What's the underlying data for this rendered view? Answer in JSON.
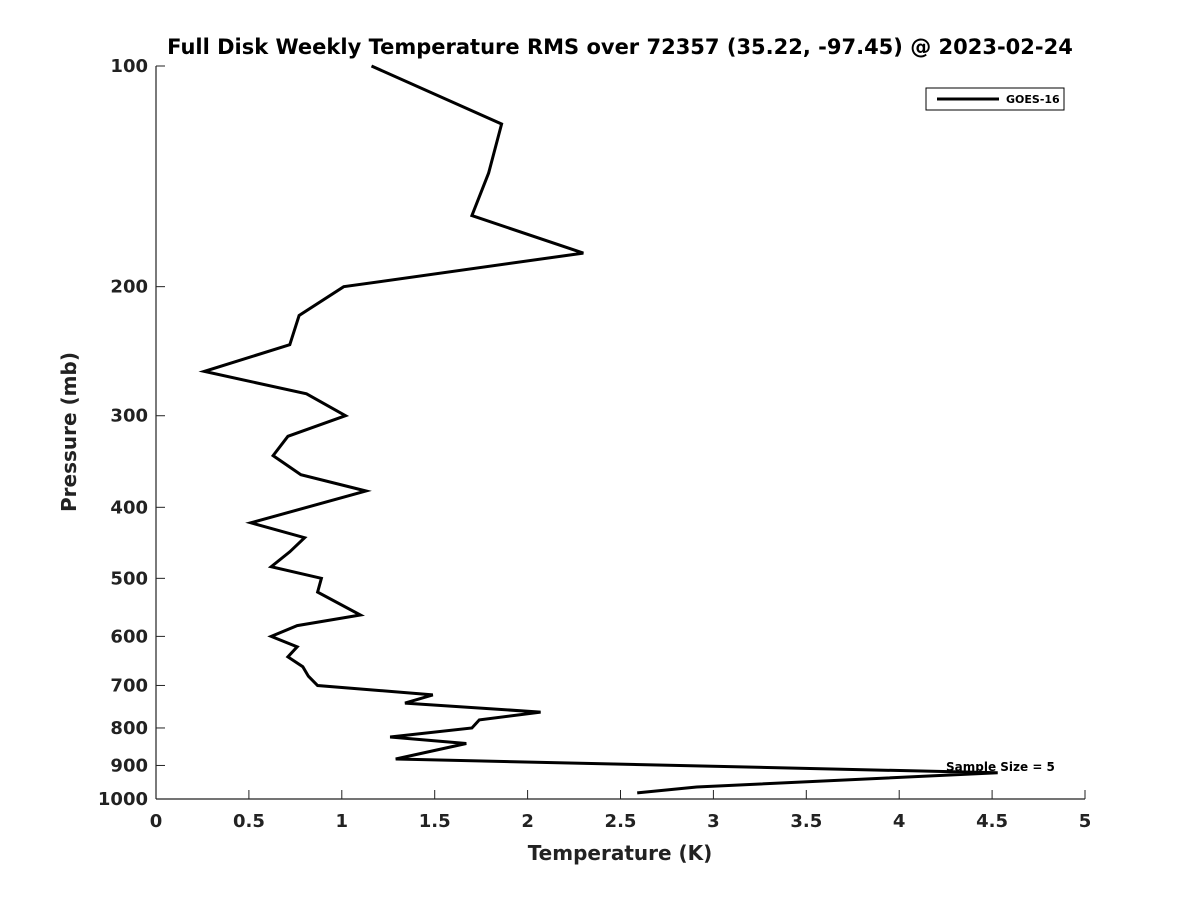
{
  "chart_data": {
    "type": "line",
    "title": "Full Disk Weekly Temperature RMS over 72357 (35.22, -97.45) @ 2023-02-24",
    "xlabel": "Temperature (K)",
    "ylabel": "Pressure (mb)",
    "xlim": [
      0,
      5
    ],
    "ylim": [
      100,
      1000
    ],
    "yscale": "log",
    "yreversed": true,
    "grid": false,
    "x_ticks": [
      0,
      0.5,
      1,
      1.5,
      2,
      2.5,
      3,
      3.5,
      4,
      4.5,
      5
    ],
    "x_tick_labels": [
      "0",
      "0.5",
      "1",
      "1.5",
      "2",
      "2.5",
      "3",
      "3.5",
      "4",
      "4.5",
      "5"
    ],
    "y_ticks": [
      100,
      200,
      300,
      400,
      500,
      600,
      700,
      800,
      900,
      1000
    ],
    "y_tick_labels": [
      "100",
      "200",
      "300",
      "400",
      "500",
      "600",
      "700",
      "800",
      "900",
      "1000"
    ],
    "legend": {
      "position": "top-right",
      "entries": [
        "GOES-16"
      ]
    },
    "annotation": "Sample Size = 5",
    "series": [
      {
        "name": "GOES-16",
        "color": "#000000",
        "points": [
          [
            1.16,
            100
          ],
          [
            1.86,
            120
          ],
          [
            1.79,
            140
          ],
          [
            1.7,
            160
          ],
          [
            2.3,
            180
          ],
          [
            1.01,
            200
          ],
          [
            0.77,
            219
          ],
          [
            0.72,
            240
          ],
          [
            0.26,
            261
          ],
          [
            0.81,
            280
          ],
          [
            1.02,
            300
          ],
          [
            0.71,
            320
          ],
          [
            0.63,
            340
          ],
          [
            0.78,
            361
          ],
          [
            1.13,
            380
          ],
          [
            0.51,
            420
          ],
          [
            0.8,
            440
          ],
          [
            0.72,
            460
          ],
          [
            0.62,
            482
          ],
          [
            0.89,
            500
          ],
          [
            0.87,
            522
          ],
          [
            1.1,
            561
          ],
          [
            0.76,
            580
          ],
          [
            0.62,
            600
          ],
          [
            0.76,
            620
          ],
          [
            0.71,
            640
          ],
          [
            0.79,
            660
          ],
          [
            0.82,
            680
          ],
          [
            0.87,
            700
          ],
          [
            1.49,
            721
          ],
          [
            1.34,
            740
          ],
          [
            2.07,
            761
          ],
          [
            1.74,
            780
          ],
          [
            1.7,
            800
          ],
          [
            1.26,
            823
          ],
          [
            1.67,
            840
          ],
          [
            1.29,
            882
          ],
          [
            4.53,
            921
          ],
          [
            2.91,
            963
          ],
          [
            2.59,
            981
          ]
        ]
      }
    ]
  }
}
